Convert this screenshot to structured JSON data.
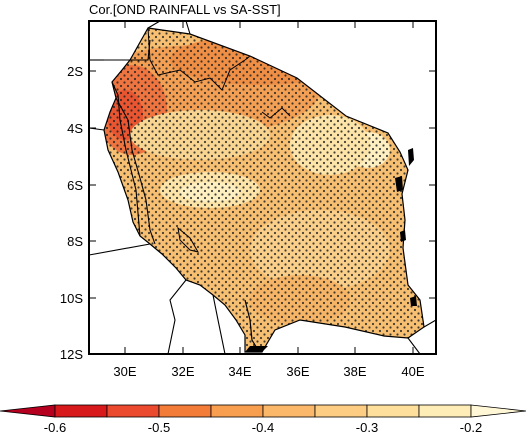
{
  "title": "Cor.[OND RAINFALL vs SA-SST]",
  "map": {
    "lat_ticks": [
      "2S",
      "4S",
      "6S",
      "8S",
      "10S",
      "12S"
    ],
    "lon_ticks": [
      "30E",
      "32E",
      "34E",
      "36E",
      "38E",
      "40E"
    ],
    "lon_range": [
      29,
      41
    ],
    "lat_range": [
      -12,
      -1
    ],
    "stippling": "significant correlation",
    "field": "correlation OND rainfall vs SA-SST"
  },
  "colorbar": {
    "labels": [
      "-0.6",
      "-0.5",
      "-0.4",
      "-0.3",
      "-0.2"
    ],
    "bins": [
      {
        "color": "#b5001f"
      },
      {
        "color": "#d7191c"
      },
      {
        "color": "#eb4a2e"
      },
      {
        "color": "#f47c39"
      },
      {
        "color": "#f89e4f"
      },
      {
        "color": "#fbb86a"
      },
      {
        "color": "#fdcd84"
      },
      {
        "color": "#fedf9c"
      },
      {
        "color": "#ffedb7"
      },
      {
        "color": "#fff7d6"
      }
    ]
  }
}
